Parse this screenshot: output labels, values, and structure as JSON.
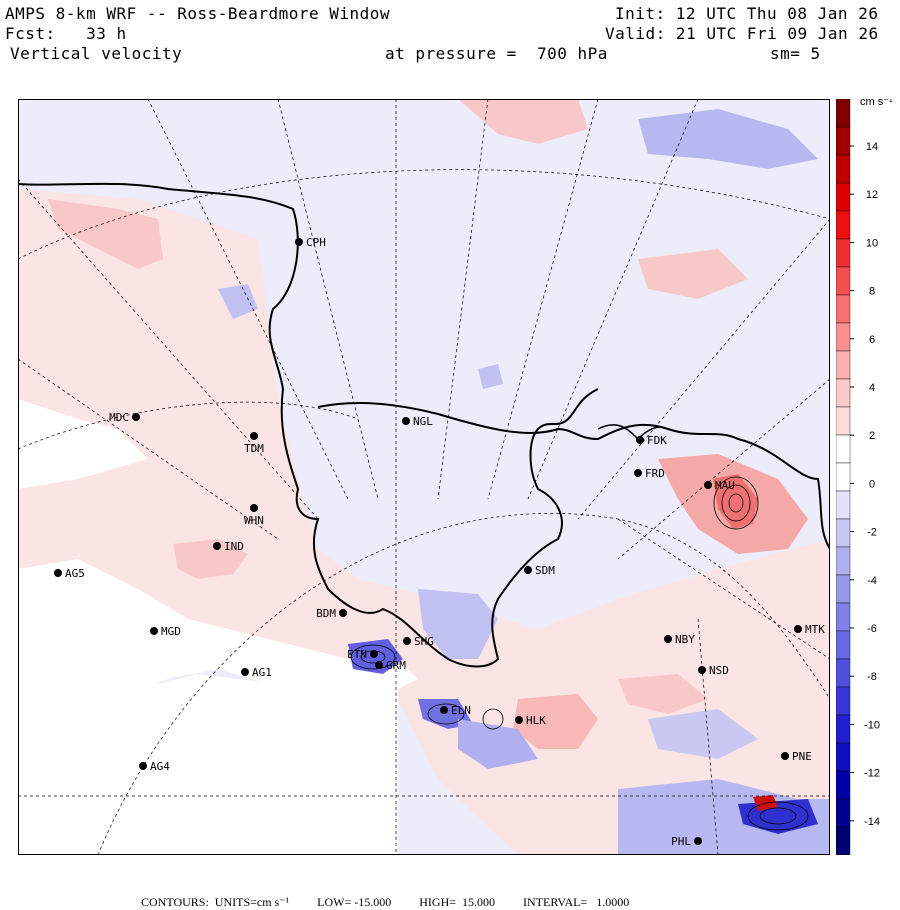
{
  "header": {
    "title": "AMPS 8-km WRF -- Ross-Beardmore Window",
    "init": "Init: 12 UTC Thu 08 Jan 26",
    "fcst": "Fcst:   33 h",
    "valid": "Valid: 21 UTC Fri 09 Jan 26",
    "field": "Vertical velocity",
    "pressure": "at pressure =  700 hPa",
    "smooth": "sm= 5"
  },
  "colorbar": {
    "units": "cm s⁻¹",
    "labels": [
      "14",
      "12",
      "10",
      "8",
      "6",
      "4",
      "2",
      "0",
      "-2",
      "-4",
      "-6",
      "-8",
      "-10",
      "-12",
      "-14"
    ],
    "colors": [
      "#800000",
      "#a00000",
      "#c00000",
      "#dd0000",
      "#ee1010",
      "#f03030",
      "#f55050",
      "#f87070",
      "#fa9090",
      "#fcb0b0",
      "#fdc8c8",
      "#fddcdc",
      "#ffffff",
      "#ffffff",
      "#e2e2fb",
      "#c8c8f5",
      "#b0b0f0",
      "#9898ea",
      "#8080e6",
      "#6868e2",
      "#5050dc",
      "#3838d8",
      "#2020d0",
      "#1010c0",
      "#0000a8",
      "#000090",
      "#000070"
    ]
  },
  "footer": {
    "contours": "CONTOURS:  UNITS=cm s⁻¹",
    "low": "LOW= -15.000",
    "high": "HIGH=  15.000",
    "interval": "INTERVAL=   1.0000"
  },
  "stations": [
    {
      "code": "CPH"
    },
    {
      "code": "MDC"
    },
    {
      "code": "TDM"
    },
    {
      "code": "NGL"
    },
    {
      "code": "FDK"
    },
    {
      "code": "FRD"
    },
    {
      "code": "MAU"
    },
    {
      "code": "WHN"
    },
    {
      "code": "IND"
    },
    {
      "code": "AG5"
    },
    {
      "code": "SDM"
    },
    {
      "code": "BDM"
    },
    {
      "code": "MGD"
    },
    {
      "code": "SHG"
    },
    {
      "code": "ETN"
    },
    {
      "code": "GRM"
    },
    {
      "code": "AG1"
    },
    {
      "code": "NBY"
    },
    {
      "code": "MTK"
    },
    {
      "code": "NSD"
    },
    {
      "code": "ELN"
    },
    {
      "code": "HLK"
    },
    {
      "code": "AG4"
    },
    {
      "code": "PNE"
    },
    {
      "code": "PHL"
    }
  ],
  "legend": {
    "field_colors": {
      "positive": "#f8b8b8",
      "negative": "#b8b8f2",
      "neutral": "#eeeefa",
      "land": "#fbe8e8"
    }
  }
}
